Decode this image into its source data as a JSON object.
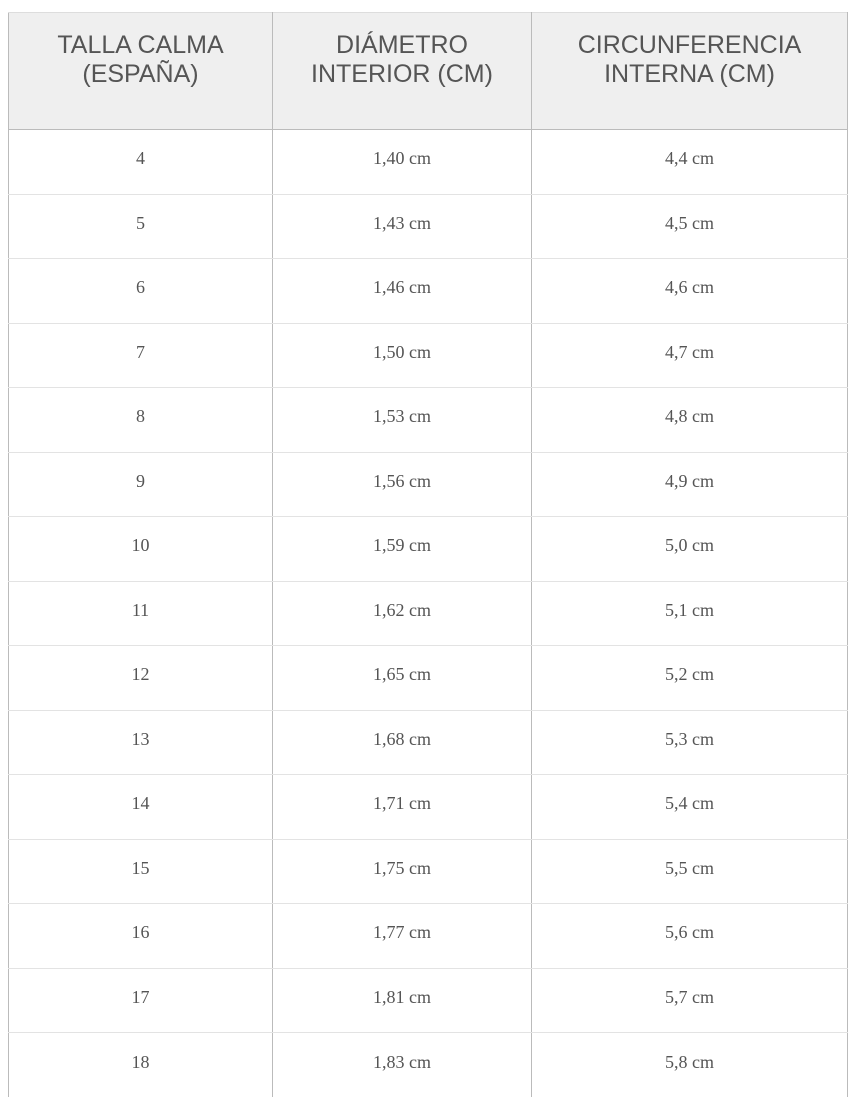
{
  "table": {
    "header": [
      "TALLA CALMA (ESPAÑA)",
      "DIÁMETRO INTERIOR (CM)",
      "CIRCUNFERENCIA INTERNA (CM)"
    ],
    "rows": [
      [
        "4",
        "1,40 cm",
        "4,4 cm"
      ],
      [
        "5",
        "1,43 cm",
        "4,5 cm"
      ],
      [
        "6",
        "1,46 cm",
        "4,6 cm"
      ],
      [
        "7",
        "1,50 cm",
        "4,7 cm"
      ],
      [
        "8",
        "1,53 cm",
        "4,8 cm"
      ],
      [
        "9",
        "1,56 cm",
        "4,9 cm"
      ],
      [
        "10",
        "1,59 cm",
        "5,0 cm"
      ],
      [
        "11",
        "1,62 cm",
        "5,1 cm"
      ],
      [
        "12",
        "1,65 cm",
        "5,2 cm"
      ],
      [
        "13",
        "1,68 cm",
        "5,3 cm"
      ],
      [
        "14",
        "1,71 cm",
        "5,4 cm"
      ],
      [
        "15",
        "1,75 cm",
        "5,5 cm"
      ],
      [
        "16",
        "1,77 cm",
        "5,6 cm"
      ],
      [
        "17",
        "1,81 cm",
        "5,7 cm"
      ],
      [
        "18",
        "1,83 cm",
        "5,8 cm"
      ]
    ]
  }
}
